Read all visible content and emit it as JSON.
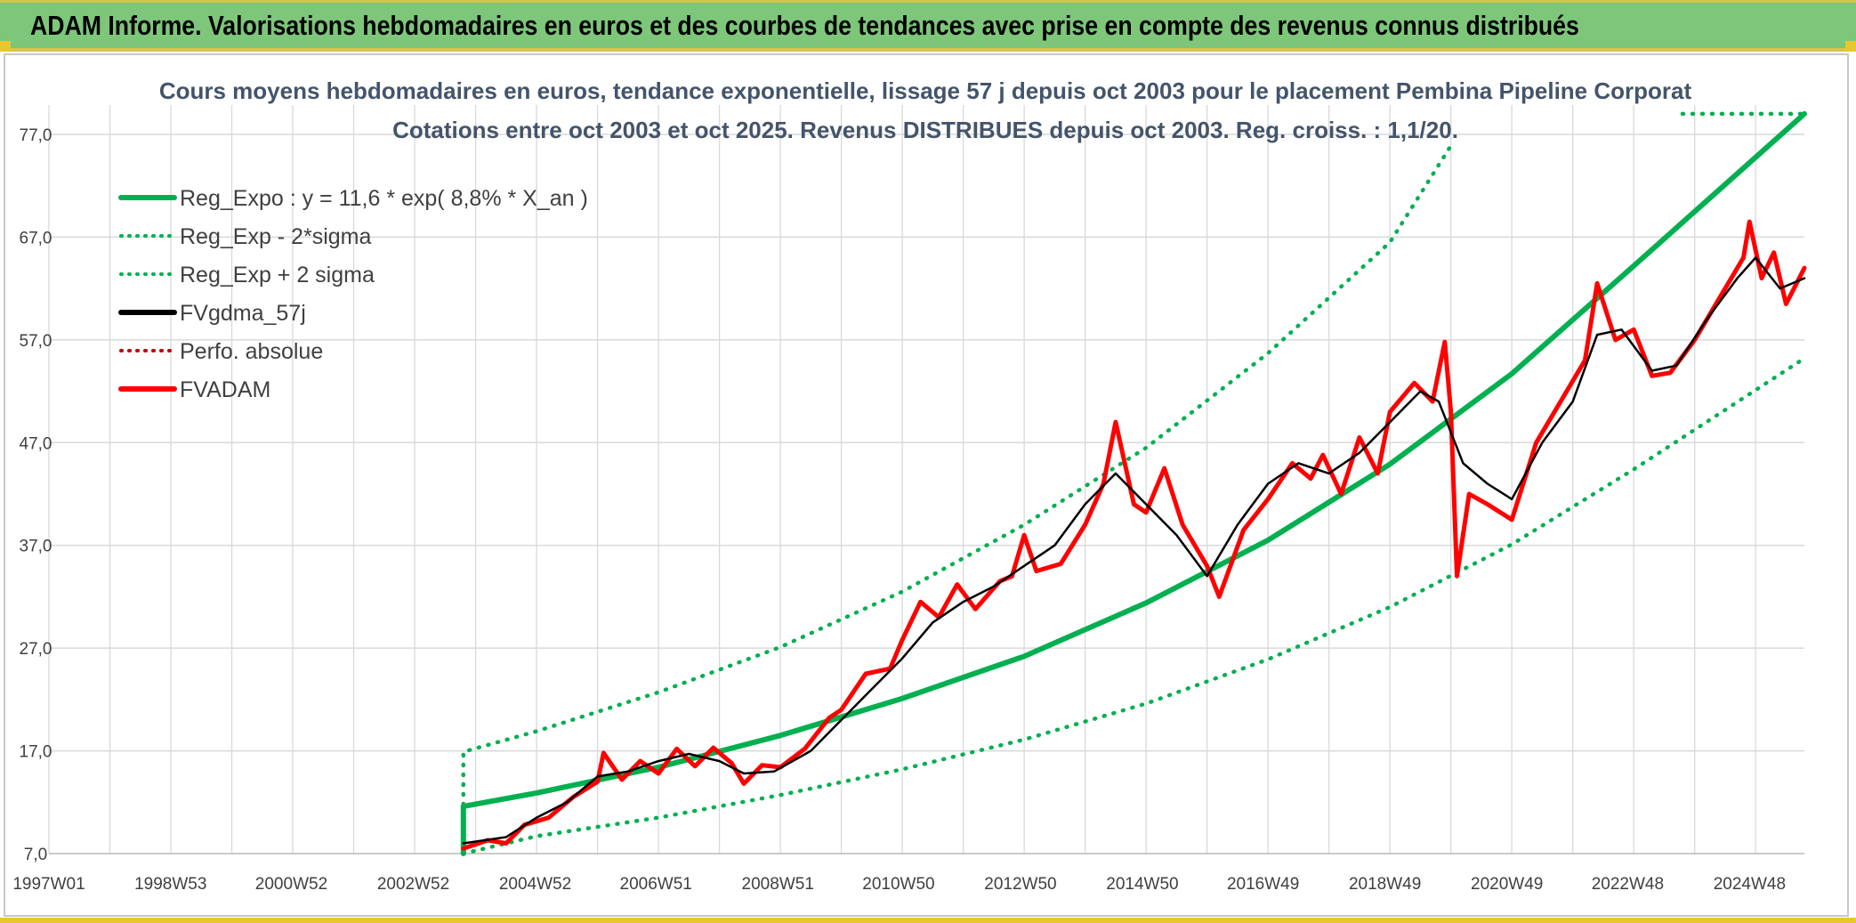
{
  "header": {
    "title": "ADAM Informe. Valorisations hebdomadaires en euros et des courbes de tendances avec prise en compte des revenus connus distribués"
  },
  "colors": {
    "banner": "#7dc67a",
    "banner_border": "#d9c34a",
    "reg_expo": "#00b050",
    "fvgdma": "#000000",
    "fvadam": "#ff0000",
    "title_text": "#44546a"
  },
  "chart_data": {
    "type": "line",
    "title": "Cours moyens hebdomadaires en euros, tendance exponentielle, lissage 57 j depuis oct 2003 pour le placement Pembina Pipeline Corporat",
    "subtitle": "Cotations entre oct 2003 et oct 2025. Revenus DISTRIBUES depuis oct 2003. Reg. croiss. : 1,1/20.",
    "x_range": [
      1997.0,
      2025.8
    ],
    "ylim": [
      7.0,
      77.0
    ],
    "y_ticks": [
      "7,0",
      "17,0",
      "27,0",
      "37,0",
      "47,0",
      "57,0",
      "67,0",
      "77,0"
    ],
    "x_ticks": [
      "1997W01",
      "1998W53",
      "2000W52",
      "2002W52",
      "2004W52",
      "2006W51",
      "2008W51",
      "2010W50",
      "2012W50",
      "2014W50",
      "2016W49",
      "2018W49",
      "2020W49",
      "2022W48",
      "2024W48"
    ],
    "grid": true,
    "legend_position": "top-left",
    "legend": [
      {
        "label": "Reg_Expo : y = 11,6 * exp( 8,8% *  X_an )",
        "color": "#00b050",
        "style": "solid"
      },
      {
        "label": "Reg_Exp - 2*sigma",
        "color": "#00b050",
        "style": "dotted"
      },
      {
        "label": "Reg_Exp + 2 sigma",
        "color": "#00b050",
        "style": "dotted"
      },
      {
        "label": "FVgdma_57j",
        "color": "#000000",
        "style": "solid"
      },
      {
        "label": "Perfo. absolue",
        "color": "#c00000",
        "style": "dotted"
      },
      {
        "label": "FVADAM",
        "color": "#ff0000",
        "style": "solid"
      }
    ],
    "series": [
      {
        "key": "reg_expo",
        "style": "solid",
        "points": [
          [
            2003.8,
            7.0
          ],
          [
            2003.8,
            11.6
          ],
          [
            2005,
            12.9
          ],
          [
            2007,
            15.4
          ],
          [
            2009,
            18.5
          ],
          [
            2011,
            22.1
          ],
          [
            2013,
            26.2
          ],
          [
            2015,
            31.4
          ],
          [
            2017,
            37.5
          ],
          [
            2019,
            44.9
          ],
          [
            2021,
            53.7
          ],
          [
            2023,
            64.2
          ],
          [
            2025.8,
            79.0
          ]
        ]
      },
      {
        "key": "reg_exp_plus",
        "style": "dotted",
        "points": [
          [
            2003.8,
            7.0
          ],
          [
            2003.8,
            16.9
          ],
          [
            2005,
            18.9
          ],
          [
            2007,
            22.7
          ],
          [
            2009,
            27.1
          ],
          [
            2011,
            32.5
          ],
          [
            2013,
            39.0
          ],
          [
            2015,
            46.5
          ],
          [
            2017,
            55.7
          ],
          [
            2019,
            66.5
          ],
          [
            2020.0,
            75.9
          ]
        ]
      },
      {
        "key": "reg_exp_plus_tail",
        "style": "dotted",
        "points": [
          [
            2023.8,
            79.0
          ],
          [
            2025.8,
            79.0
          ]
        ]
      },
      {
        "key": "reg_exp_minus",
        "style": "dotted",
        "points": [
          [
            2003.8,
            7.0
          ],
          [
            2005,
            8.7
          ],
          [
            2007,
            10.5
          ],
          [
            2009,
            12.7
          ],
          [
            2011,
            15.2
          ],
          [
            2013,
            18.1
          ],
          [
            2015,
            21.6
          ],
          [
            2017,
            25.9
          ],
          [
            2019,
            31.0
          ],
          [
            2021,
            37.1
          ],
          [
            2023,
            44.4
          ],
          [
            2025.8,
            55.2
          ]
        ]
      },
      {
        "key": "fvgdma_57j",
        "style": "solid",
        "points": [
          [
            2003.8,
            8.0
          ],
          [
            2004.5,
            8.6
          ],
          [
            2005.0,
            10.5
          ],
          [
            2005.5,
            12.0
          ],
          [
            2006.0,
            14.5
          ],
          [
            2006.5,
            15.0
          ],
          [
            2007.0,
            16.0
          ],
          [
            2007.5,
            16.7
          ],
          [
            2008.0,
            16.0
          ],
          [
            2008.4,
            14.8
          ],
          [
            2008.9,
            15.0
          ],
          [
            2009.5,
            17.0
          ],
          [
            2010.0,
            20.0
          ],
          [
            2010.5,
            23.0
          ],
          [
            2011.0,
            26.0
          ],
          [
            2011.5,
            29.5
          ],
          [
            2012.0,
            31.5
          ],
          [
            2012.5,
            33.0
          ],
          [
            2013.0,
            35.0
          ],
          [
            2013.5,
            37.0
          ],
          [
            2014.0,
            41.0
          ],
          [
            2014.5,
            44.0
          ],
          [
            2015.0,
            41.0
          ],
          [
            2015.5,
            38.0
          ],
          [
            2016.0,
            34.0
          ],
          [
            2016.5,
            39.0
          ],
          [
            2017.0,
            43.0
          ],
          [
            2017.5,
            45.0
          ],
          [
            2018.0,
            44.0
          ],
          [
            2018.5,
            46.0
          ],
          [
            2019.0,
            49.0
          ],
          [
            2019.5,
            52.0
          ],
          [
            2019.8,
            51.0
          ],
          [
            2020.2,
            45.0
          ],
          [
            2020.6,
            43.0
          ],
          [
            2021.0,
            41.5
          ],
          [
            2021.5,
            47.0
          ],
          [
            2022.0,
            51.0
          ],
          [
            2022.4,
            57.5
          ],
          [
            2022.8,
            58.0
          ],
          [
            2023.3,
            54.0
          ],
          [
            2023.7,
            54.5
          ],
          [
            2024.2,
            59.0
          ],
          [
            2024.7,
            63.0
          ],
          [
            2025.0,
            65.0
          ],
          [
            2025.4,
            62.0
          ],
          [
            2025.8,
            63.0
          ]
        ]
      },
      {
        "key": "fvadam",
        "style": "solid",
        "points": [
          [
            2003.8,
            7.5
          ],
          [
            2004.2,
            8.3
          ],
          [
            2004.5,
            8.0
          ],
          [
            2004.8,
            9.8
          ],
          [
            2005.2,
            10.5
          ],
          [
            2005.6,
            12.5
          ],
          [
            2006.0,
            14.0
          ],
          [
            2006.1,
            16.8
          ],
          [
            2006.4,
            14.2
          ],
          [
            2006.7,
            16.0
          ],
          [
            2007.0,
            14.8
          ],
          [
            2007.3,
            17.2
          ],
          [
            2007.6,
            15.5
          ],
          [
            2007.9,
            17.3
          ],
          [
            2008.2,
            15.8
          ],
          [
            2008.4,
            13.8
          ],
          [
            2008.7,
            15.6
          ],
          [
            2009.0,
            15.4
          ],
          [
            2009.4,
            17.2
          ],
          [
            2009.8,
            20.2
          ],
          [
            2010.0,
            21.0
          ],
          [
            2010.4,
            24.5
          ],
          [
            2010.8,
            25.0
          ],
          [
            2011.0,
            27.8
          ],
          [
            2011.3,
            31.5
          ],
          [
            2011.6,
            30.0
          ],
          [
            2011.9,
            33.2
          ],
          [
            2012.2,
            30.8
          ],
          [
            2012.6,
            33.5
          ],
          [
            2012.8,
            34.0
          ],
          [
            2013.0,
            38.0
          ],
          [
            2013.2,
            34.5
          ],
          [
            2013.6,
            35.2
          ],
          [
            2014.0,
            39.0
          ],
          [
            2014.3,
            43.0
          ],
          [
            2014.5,
            49.0
          ],
          [
            2014.8,
            41.0
          ],
          [
            2015.0,
            40.2
          ],
          [
            2015.3,
            44.5
          ],
          [
            2015.6,
            39.0
          ],
          [
            2016.0,
            35.0
          ],
          [
            2016.2,
            32.0
          ],
          [
            2016.6,
            38.5
          ],
          [
            2017.0,
            41.5
          ],
          [
            2017.4,
            45.0
          ],
          [
            2017.7,
            43.5
          ],
          [
            2017.9,
            45.8
          ],
          [
            2018.2,
            42.0
          ],
          [
            2018.5,
            47.5
          ],
          [
            2018.8,
            44.0
          ],
          [
            2019.0,
            50.0
          ],
          [
            2019.4,
            52.8
          ],
          [
            2019.7,
            51.0
          ],
          [
            2019.9,
            56.8
          ],
          [
            2020.0,
            50.0
          ],
          [
            2020.1,
            34.0
          ],
          [
            2020.3,
            42.0
          ],
          [
            2020.6,
            41.0
          ],
          [
            2021.0,
            39.5
          ],
          [
            2021.4,
            47.0
          ],
          [
            2021.8,
            51.0
          ],
          [
            2022.2,
            55.0
          ],
          [
            2022.4,
            62.5
          ],
          [
            2022.7,
            57.0
          ],
          [
            2023.0,
            58.0
          ],
          [
            2023.3,
            53.5
          ],
          [
            2023.6,
            53.8
          ],
          [
            2024.0,
            57.0
          ],
          [
            2024.4,
            61.0
          ],
          [
            2024.8,
            65.0
          ],
          [
            2024.9,
            68.5
          ],
          [
            2025.1,
            63.0
          ],
          [
            2025.3,
            65.5
          ],
          [
            2025.5,
            60.5
          ],
          [
            2025.8,
            64.0
          ]
        ]
      }
    ]
  }
}
